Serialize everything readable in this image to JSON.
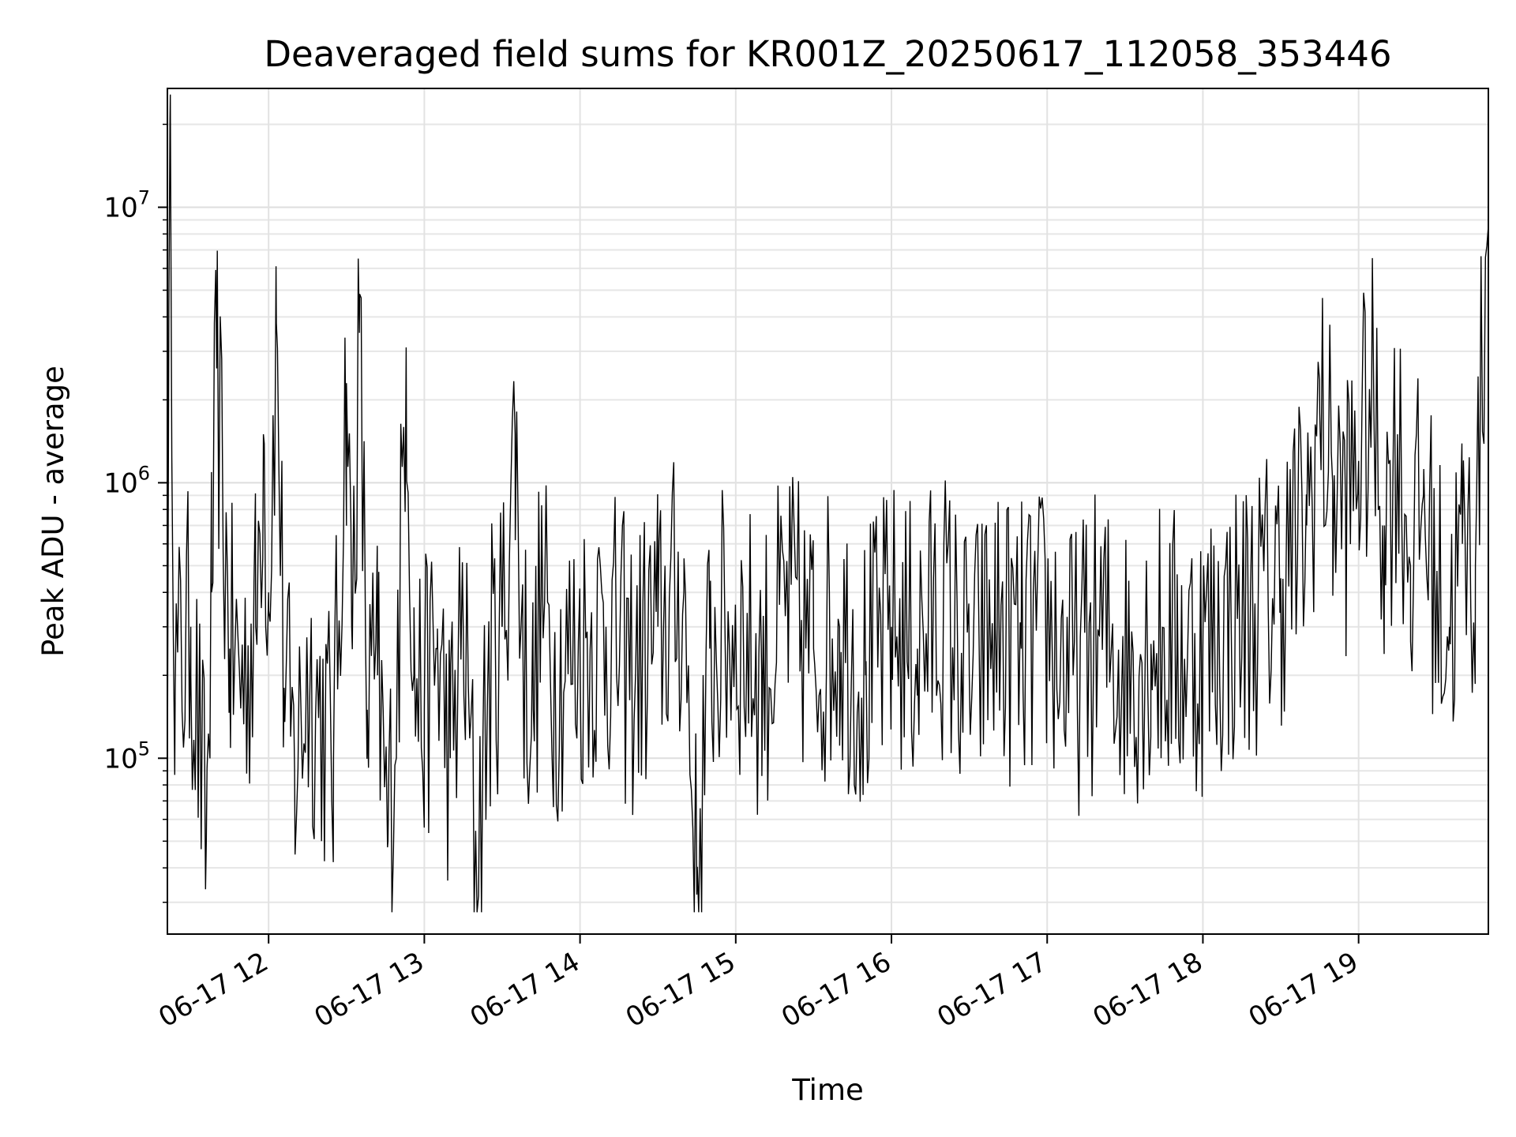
{
  "chart_data": {
    "type": "line",
    "title": "Deaveraged field sums for KR001Z_20250617_112058_353446",
    "xlabel": "Time",
    "ylabel": "Peak ADU - average",
    "yscale": "log",
    "ylim": [
      23000,
      27000000
    ],
    "xlim": [
      "2025-06-17 11:21",
      "2025-06-17 19:50"
    ],
    "grid": true,
    "line_color": "#000000",
    "x_ticks": [
      {
        "label": "06-17 12",
        "time": "2025-06-17 12:00"
      },
      {
        "label": "06-17 13",
        "time": "2025-06-17 13:00"
      },
      {
        "label": "06-17 14",
        "time": "2025-06-17 14:00"
      },
      {
        "label": "06-17 15",
        "time": "2025-06-17 15:00"
      },
      {
        "label": "06-17 16",
        "time": "2025-06-17 16:00"
      },
      {
        "label": "06-17 17",
        "time": "2025-06-17 17:00"
      },
      {
        "label": "06-17 18",
        "time": "2025-06-17 18:00"
      },
      {
        "label": "06-17 19",
        "time": "2025-06-17 19:00"
      }
    ],
    "y_ticks": [
      {
        "base": "10",
        "exp": "5",
        "value": 100000
      },
      {
        "base": "10",
        "exp": "6",
        "value": 1000000
      },
      {
        "base": "10",
        "exp": "7",
        "value": 10000000
      }
    ],
    "series": [
      {
        "points": [
          [
            "2025-06-17 11:21",
            80000
          ],
          [
            "2025-06-17 11:22",
            21000000
          ],
          [
            "2025-06-17 11:24",
            180000
          ],
          [
            "2025-06-17 11:30",
            300000
          ],
          [
            "2025-06-17 11:36",
            50000
          ],
          [
            "2025-06-17 11:38",
            400000
          ],
          [
            "2025-06-17 11:40",
            2600000
          ],
          [
            "2025-06-17 11:45",
            250000
          ],
          [
            "2025-06-17 11:50",
            200000
          ],
          [
            "2025-06-17 11:55",
            300000
          ],
          [
            "2025-06-17 11:58",
            1500000
          ],
          [
            "2025-06-17 12:00",
            400000
          ],
          [
            "2025-06-17 12:03",
            3800000
          ],
          [
            "2025-06-17 12:06",
            180000
          ],
          [
            "2025-06-17 12:10",
            90000
          ],
          [
            "2025-06-17 12:15",
            200000
          ],
          [
            "2025-06-17 12:20",
            150000
          ],
          [
            "2025-06-17 12:25",
            100000
          ],
          [
            "2025-06-17 12:30",
            2300000
          ],
          [
            "2025-06-17 12:32",
            300000
          ],
          [
            "2025-06-17 12:35",
            3500000
          ],
          [
            "2025-06-17 12:38",
            150000
          ],
          [
            "2025-06-17 12:42",
            200000
          ],
          [
            "2025-06-17 12:46",
            50000
          ],
          [
            "2025-06-17 12:50",
            250000
          ],
          [
            "2025-06-17 12:53",
            3100000
          ],
          [
            "2025-06-17 12:56",
            200000
          ],
          [
            "2025-06-17 13:00",
            150000
          ],
          [
            "2025-06-17 13:05",
            250000
          ],
          [
            "2025-06-17 13:10",
            100000
          ],
          [
            "2025-06-17 13:15",
            300000
          ],
          [
            "2025-06-17 13:20",
            42000
          ],
          [
            "2025-06-17 13:25",
            200000
          ],
          [
            "2025-06-17 13:30",
            300000
          ],
          [
            "2025-06-17 13:35",
            1500000
          ],
          [
            "2025-06-17 13:38",
            250000
          ],
          [
            "2025-06-17 13:42",
            150000
          ],
          [
            "2025-06-17 13:45",
            400000
          ],
          [
            "2025-06-17 13:50",
            200000
          ],
          [
            "2025-06-17 14:00",
            250000
          ],
          [
            "2025-06-17 14:10",
            300000
          ],
          [
            "2025-06-17 14:20",
            200000
          ],
          [
            "2025-06-17 14:30",
            300000
          ],
          [
            "2025-06-17 14:40",
            400000
          ],
          [
            "2025-06-17 14:45",
            32000
          ],
          [
            "2025-06-17 14:50",
            250000
          ],
          [
            "2025-06-17 15:00",
            300000
          ],
          [
            "2025-06-17 15:10",
            200000
          ],
          [
            "2025-06-17 15:20",
            350000
          ],
          [
            "2025-06-17 15:30",
            250000
          ],
          [
            "2025-06-17 15:40",
            300000
          ],
          [
            "2025-06-17 15:50",
            200000
          ],
          [
            "2025-06-17 16:00",
            300000
          ],
          [
            "2025-06-17 16:10",
            250000
          ],
          [
            "2025-06-17 16:20",
            350000
          ],
          [
            "2025-06-17 16:30",
            200000
          ],
          [
            "2025-06-17 16:40",
            300000
          ],
          [
            "2025-06-17 16:50",
            250000
          ],
          [
            "2025-06-17 17:00",
            300000
          ],
          [
            "2025-06-17 17:10",
            200000
          ],
          [
            "2025-06-17 17:20",
            280000
          ],
          [
            "2025-06-17 17:30",
            220000
          ],
          [
            "2025-06-17 17:40",
            260000
          ],
          [
            "2025-06-17 17:50",
            240000
          ],
          [
            "2025-06-17 18:00",
            250000
          ],
          [
            "2025-06-17 18:10",
            300000
          ],
          [
            "2025-06-17 18:20",
            350000
          ],
          [
            "2025-06-17 18:30",
            450000
          ],
          [
            "2025-06-17 18:40",
            700000
          ],
          [
            "2025-06-17 18:45",
            1800000
          ],
          [
            "2025-06-17 18:50",
            1000000
          ],
          [
            "2025-06-17 18:55",
            800000
          ],
          [
            "2025-06-17 19:00",
            1200000
          ],
          [
            "2025-06-17 19:05",
            2000000
          ],
          [
            "2025-06-17 19:10",
            700000
          ],
          [
            "2025-06-17 19:15",
            1500000
          ],
          [
            "2025-06-17 19:20",
            500000
          ],
          [
            "2025-06-17 19:25",
            900000
          ],
          [
            "2025-06-17 19:30",
            400000
          ],
          [
            "2025-06-17 19:35",
            300000
          ],
          [
            "2025-06-17 19:40",
            600000
          ],
          [
            "2025-06-17 19:45",
            500000
          ],
          [
            "2025-06-17 19:50",
            11500000
          ]
        ]
      }
    ]
  }
}
